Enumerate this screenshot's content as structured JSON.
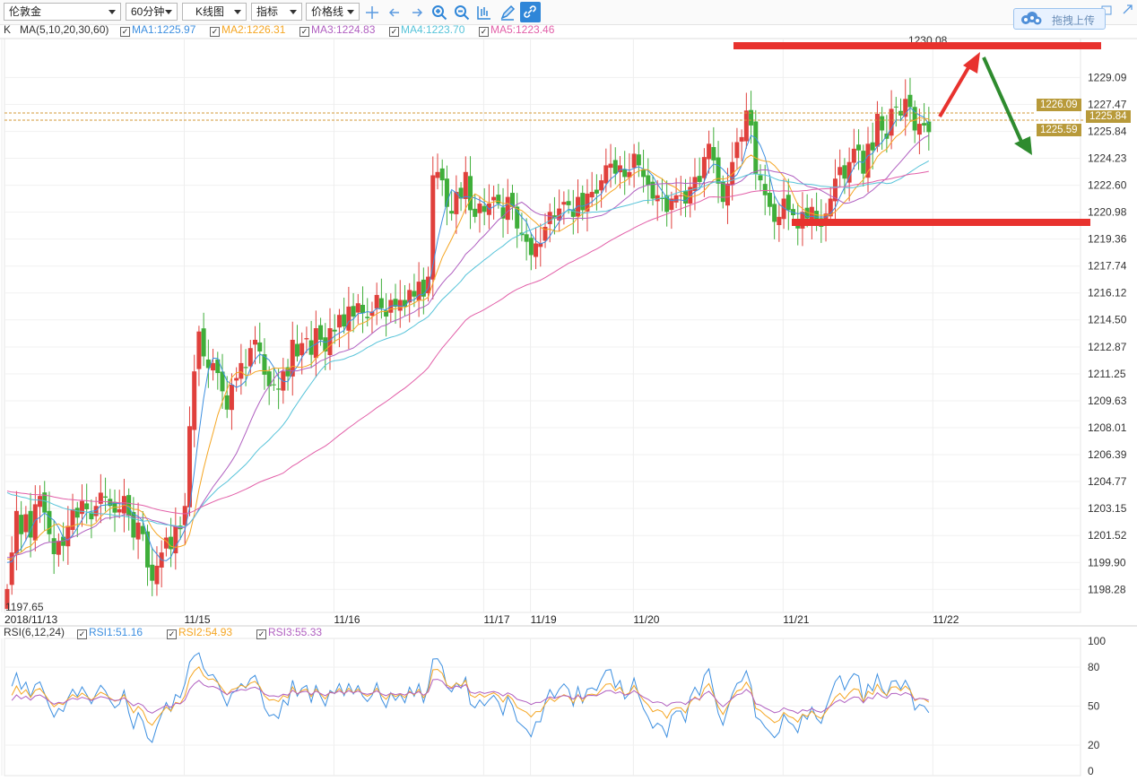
{
  "toolbar": {
    "symbol": "伦敦金",
    "period": "60分钟",
    "chart_type": "K线图",
    "indicator": "指标",
    "price_line": "价格线",
    "icons": [
      "crosshair-icon",
      "arrow-left-icon",
      "arrow-right-icon",
      "zoom-in-icon",
      "zoom-out-icon",
      "candle-bar-icon",
      "pen-icon",
      "link-icon"
    ],
    "upload_label": "拖拽上传",
    "accent": "#2f86d8"
  },
  "legend": {
    "prefix": "K",
    "ma_title": "MA(5,10,20,30,60)",
    "ma": [
      {
        "label": "MA1:1225.97",
        "color": "#3d8fe0"
      },
      {
        "label": "MA2:1226.31",
        "color": "#f5a623"
      },
      {
        "label": "MA3:1224.83",
        "color": "#b05fc0"
      },
      {
        "label": "MA4:1223.70",
        "color": "#56c3d9"
      },
      {
        "label": "MA5:1223.46",
        "color": "#e25fa8"
      }
    ]
  },
  "rsi_legend": {
    "title": "RSI(6,12,24)",
    "items": [
      {
        "label": "RSI1:51.16",
        "color": "#3d8fe0"
      },
      {
        "label": "RSI2:54.93",
        "color": "#f5a623"
      },
      {
        "label": "RSI3:55.33",
        "color": "#b05fc0"
      }
    ]
  },
  "price_axis": [
    "1229.09",
    "1227.47",
    "1225.84",
    "1224.23",
    "1222.60",
    "1220.98",
    "1219.36",
    "1217.74",
    "1216.12",
    "1214.50",
    "1212.87",
    "1211.25",
    "1209.63",
    "1208.01",
    "1206.39",
    "1204.77",
    "1203.15",
    "1201.52",
    "1199.90",
    "1198.28"
  ],
  "rsi_axis": [
    "100",
    "80",
    "50",
    "20",
    "0"
  ],
  "date_axis": [
    {
      "label": "2018/11/13",
      "i": 0
    },
    {
      "label": "11/15",
      "i": 39
    },
    {
      "label": "11/16",
      "i": 71
    },
    {
      "label": "11/17",
      "i": 103
    },
    {
      "label": "11/19",
      "i": 113
    },
    {
      "label": "11/20",
      "i": 135
    },
    {
      "label": "11/21",
      "i": 167
    },
    {
      "label": "11/22",
      "i": 199
    }
  ],
  "price_tags": {
    "ma_upper": "1226.09",
    "current": "1225.84",
    "ma_lower": "1225.59"
  },
  "high_label": "1230.08",
  "low_label": "1197.65",
  "colors": {
    "up": "#e0403c",
    "down": "#3fae3a",
    "annotation_red": "#e8322e",
    "annotation_green": "#2e8b2e",
    "tag": "#b89a3a"
  },
  "annotations": {
    "resistance_level": 1229.9,
    "support_level": 1219.8,
    "arrows": [
      "up-arrow-red",
      "down-arrow-green"
    ]
  },
  "chart_data": {
    "type": "candlestick",
    "timeframe": "60分钟",
    "ylim": [
      1197.0,
      1231.0
    ],
    "closes": [
      1198.3,
      1200.5,
      1203.0,
      1201.6,
      1202.8,
      1201.4,
      1203.4,
      1203.9,
      1202.9,
      1201.6,
      1200.4,
      1201.2,
      1200.9,
      1202.1,
      1203.1,
      1202.6,
      1203.6,
      1203.1,
      1202.5,
      1203.3,
      1204.1,
      1203.8,
      1203.3,
      1202.9,
      1203.1,
      1203.9,
      1202.7,
      1201.4,
      1202.3,
      1201.6,
      1199.6,
      1198.8,
      1199.7,
      1200.5,
      1201.4,
      1200.7,
      1202.1,
      1201.9,
      1203.3,
      1208.1,
      1211.4,
      1213.8,
      1212.3,
      1211.6,
      1211.9,
      1211.3,
      1210.2,
      1209.1,
      1210.6,
      1211.0,
      1211.9,
      1211.6,
      1212.8,
      1213.3,
      1212.6,
      1211.2,
      1210.5,
      1210.6,
      1210.3,
      1211.4,
      1211.1,
      1213.3,
      1212.3,
      1213.1,
      1213.4,
      1212.4,
      1214.0,
      1213.3,
      1212.6,
      1214.0,
      1213.8,
      1214.8,
      1214.1,
      1215.3,
      1214.7,
      1215.5,
      1214.9,
      1214.6,
      1215.0,
      1216.0,
      1215.2,
      1214.7,
      1215.7,
      1215.3,
      1215.7,
      1215.3,
      1216.3,
      1215.9,
      1216.8,
      1215.9,
      1217.1,
      1223.2,
      1223.4,
      1222.9,
      1221.3,
      1220.9,
      1222.2,
      1221.8,
      1223.4,
      1221.1,
      1220.7,
      1221.5,
      1221.0,
      1221.5,
      1221.9,
      1221.5,
      1220.6,
      1221.9,
      1221.3,
      1220.0,
      1219.6,
      1219.2,
      1218.4,
      1219.1,
      1219.1,
      1220.1,
      1221.0,
      1220.6,
      1221.2,
      1221.6,
      1221.4,
      1220.7,
      1221.9,
      1221.1,
      1222.1,
      1222.2,
      1222.1,
      1222.9,
      1223.8,
      1223.9,
      1223.3,
      1223.8,
      1223.1,
      1223.4,
      1224.5,
      1223.8,
      1223.1,
      1222.6,
      1221.8,
      1222.0,
      1221.8,
      1221.0,
      1221.8,
      1222.0,
      1222.0,
      1221.5,
      1222.5,
      1223.1,
      1222.8,
      1224.3,
      1225.1,
      1224.1,
      1222.7,
      1221.6,
      1222.7,
      1224.0,
      1225.2,
      1225.5,
      1227.1,
      1226.2,
      1223.3,
      1222.9,
      1222.0,
      1221.3,
      1220.4,
      1220.7,
      1221.8,
      1221.1,
      1220.8,
      1220.0,
      1221.0,
      1220.6,
      1221.3,
      1220.5,
      1220.1,
      1220.9,
      1221.8,
      1223.0,
      1223.7,
      1223.0,
      1224.0,
      1224.8,
      1224.7,
      1223.3,
      1225.1,
      1224.7,
      1226.9,
      1225.9,
      1225.4,
      1227.2,
      1227.3,
      1226.8,
      1227.8,
      1227.3,
      1225.9,
      1226.3,
      1226.2,
      1225.8
    ],
    "series": [
      {
        "name": "MA1",
        "period": 5
      },
      {
        "name": "MA2",
        "period": 10
      },
      {
        "name": "MA3",
        "period": 20
      },
      {
        "name": "MA4",
        "period": 30
      },
      {
        "name": "MA5",
        "period": 60
      }
    ],
    "rsi": {
      "periods": [
        6,
        12,
        24
      ],
      "ylim": [
        0,
        100
      ],
      "levels": [
        100,
        80,
        50,
        20,
        0
      ]
    }
  }
}
